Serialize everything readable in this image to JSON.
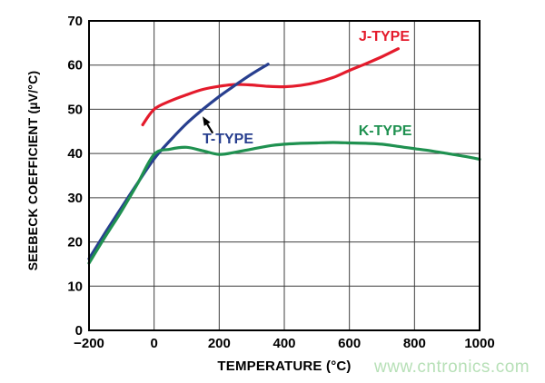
{
  "watermark": {
    "text": "www.cntronics.com",
    "color": "#b7e0b7"
  },
  "chart_data": {
    "type": "line",
    "title": "",
    "xlabel": "TEMPERATURE (°C)",
    "ylabel": "SEEBECK COEFFICIENT (µV/°C)",
    "xlim": [
      -200,
      1000
    ],
    "ylim": [
      0,
      70
    ],
    "x_ticks": [
      -200,
      0,
      200,
      400,
      600,
      800,
      1000
    ],
    "x_tick_labels": [
      "−200",
      "0",
      "200",
      "400",
      "600",
      "800",
      "1000"
    ],
    "y_ticks": [
      0,
      10,
      20,
      30,
      40,
      50,
      60,
      70
    ],
    "y_tick_labels": [
      "0",
      "10",
      "20",
      "30",
      "40",
      "50",
      "60",
      "70"
    ],
    "grid": true,
    "grid_color": "#3f3f3f",
    "axis_color": "#000000",
    "legend_position": "inline-labels",
    "series": [
      {
        "name": "J-TYPE",
        "color": "#e41b2c",
        "x": [
          -35,
          0,
          50,
          100,
          150,
          200,
          250,
          300,
          350,
          400,
          450,
          500,
          550,
          600,
          650,
          700,
          750
        ],
        "y": [
          46.5,
          50.0,
          51.9,
          53.3,
          54.5,
          55.2,
          55.6,
          55.5,
          55.2,
          55.1,
          55.4,
          56.1,
          57.2,
          58.8,
          60.3,
          61.9,
          63.7
        ],
        "label_x": 707,
        "label_y": 66.5
      },
      {
        "name": "T-TYPE",
        "color": "#283f8f",
        "x": [
          -200,
          -150,
          -100,
          -50,
          0,
          50,
          100,
          150,
          200,
          250,
          300,
          350
        ],
        "y": [
          16.2,
          22.1,
          27.8,
          33.4,
          38.8,
          43.0,
          46.8,
          50.0,
          52.9,
          55.5,
          58.0,
          60.2
        ],
        "label_x": 227,
        "label_y": 43.3
      },
      {
        "name": "K-TYPE",
        "color": "#1f9150",
        "x": [
          -200,
          -150,
          -100,
          -50,
          0,
          50,
          100,
          150,
          200,
          250,
          300,
          350,
          400,
          450,
          500,
          550,
          600,
          650,
          700,
          750,
          800,
          850,
          900,
          950,
          1000
        ],
        "y": [
          15.2,
          21.2,
          27.0,
          33.3,
          39.8,
          41.0,
          41.4,
          40.6,
          39.8,
          40.3,
          41.0,
          41.7,
          42.1,
          42.3,
          42.4,
          42.5,
          42.4,
          42.3,
          42.1,
          41.6,
          41.1,
          40.6,
          40.0,
          39.4,
          38.7
        ],
        "label_x": 710,
        "label_y": 45.2
      }
    ],
    "annotation_arrow": {
      "from_x": 180,
      "from_y": 44.6,
      "to_x": 149,
      "to_y": 48.4,
      "color": "#000000"
    }
  }
}
